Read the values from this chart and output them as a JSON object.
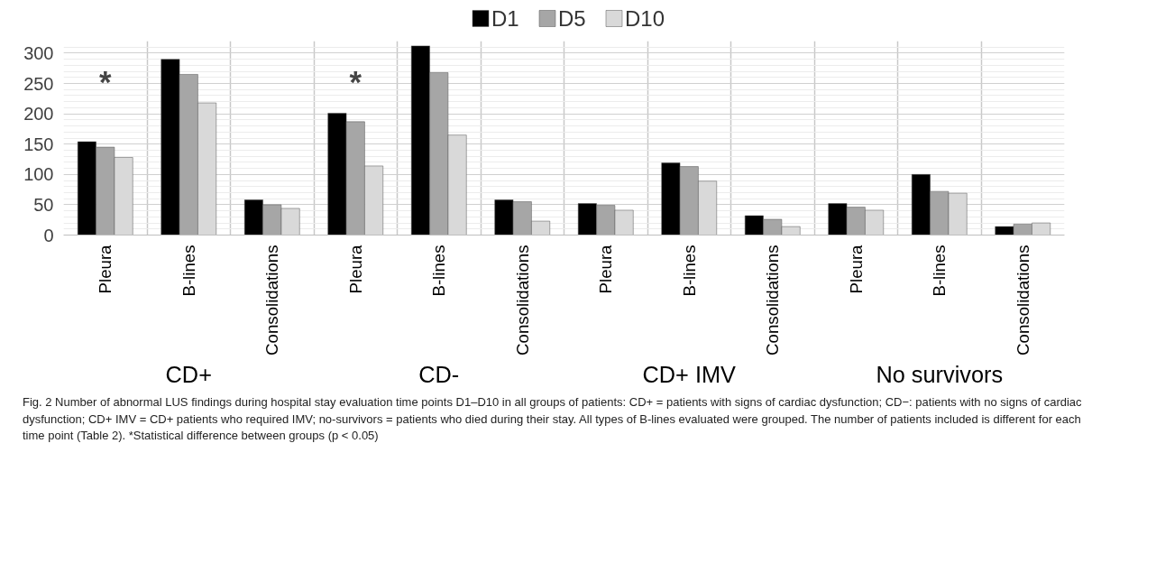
{
  "chart_data": {
    "type": "bar",
    "categories": [
      "Pleura",
      "B-lines",
      "Consolidations",
      "Pleura",
      "B-lines",
      "Consolidations",
      "Pleura",
      "B-lines",
      "Consolidations",
      "Pleura",
      "B-lines",
      "Consolidations"
    ],
    "series": [
      {
        "name": "D1",
        "color": "#000000",
        "values": [
          154,
          290,
          58,
          201,
          312,
          58,
          52,
          119,
          32,
          52,
          100,
          14
        ]
      },
      {
        "name": "D5",
        "color": "#a6a6a6",
        "values": [
          145,
          265,
          50,
          187,
          268,
          55,
          49,
          113,
          26,
          46,
          72,
          18
        ]
      },
      {
        "name": "D10",
        "color": "#d9d9d9",
        "values": [
          128,
          218,
          44,
          114,
          165,
          23,
          41,
          89,
          14,
          41,
          69,
          20
        ]
      }
    ],
    "ylim": [
      0,
      320
    ],
    "yticks": [
      0,
      50,
      100,
      150,
      200,
      250,
      300
    ],
    "grid": true,
    "legend": "top",
    "annotations": [
      "CD+",
      "CD-",
      "CD+ IMV",
      "No survivors",
      "*",
      "*",
      "Fig. 2 Number of abnormal LUS findings during hospital stay evaluation time points D1–D10 in all groups of patients: CD+ = patients with signs of cardiac dysfunction; CD−: patients with no signs of cardiac dysfunction; CD+ IMV = CD+ patients who required IMV; no-survivors = patients who died during their stay. All types of B-lines evaluated were grouped. The number of patients included is different for each time point (Table 2). *Statistical difference between groups (p < 0.05)"
    ]
  }
}
